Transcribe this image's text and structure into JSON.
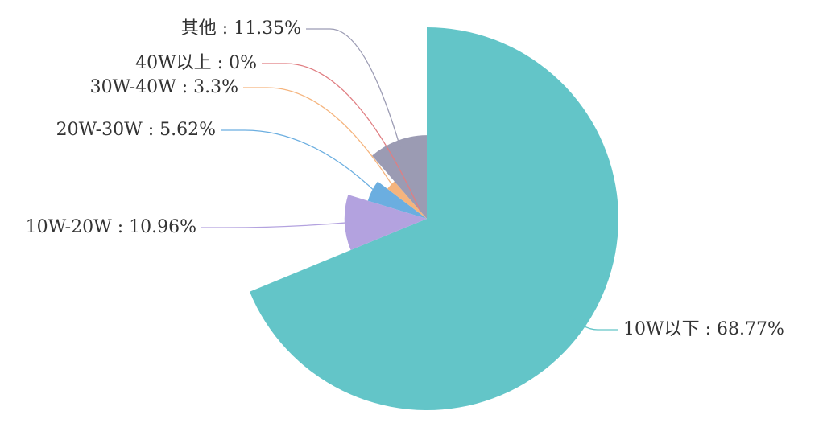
{
  "chart_data": {
    "type": "pie",
    "style": "rose-by-radius",
    "legend": "none",
    "title": "",
    "series": [
      {
        "slices": [
          {
            "category": "10W以下",
            "value": 68.77,
            "label": "10W以下 : 68.77%",
            "color": "#63c5c8"
          },
          {
            "category": "10W-20W",
            "value": 10.96,
            "label": "10W-20W : 10.96%",
            "color": "#b3a2df"
          },
          {
            "category": "20W-30W",
            "value": 5.62,
            "label": "20W-30W : 5.62%",
            "color": "#6baee0"
          },
          {
            "category": "30W-40W",
            "value": 3.3,
            "label": "30W-40W : 3.3%",
            "color": "#f5b47d"
          },
          {
            "category": "40W以上",
            "value": 0,
            "label": "40W以上 : 0%",
            "color": "#e07e82"
          },
          {
            "category": "其他",
            "value": 11.35,
            "label": "其他 : 11.35%",
            "color": "#9b9bb3"
          }
        ]
      }
    ]
  }
}
